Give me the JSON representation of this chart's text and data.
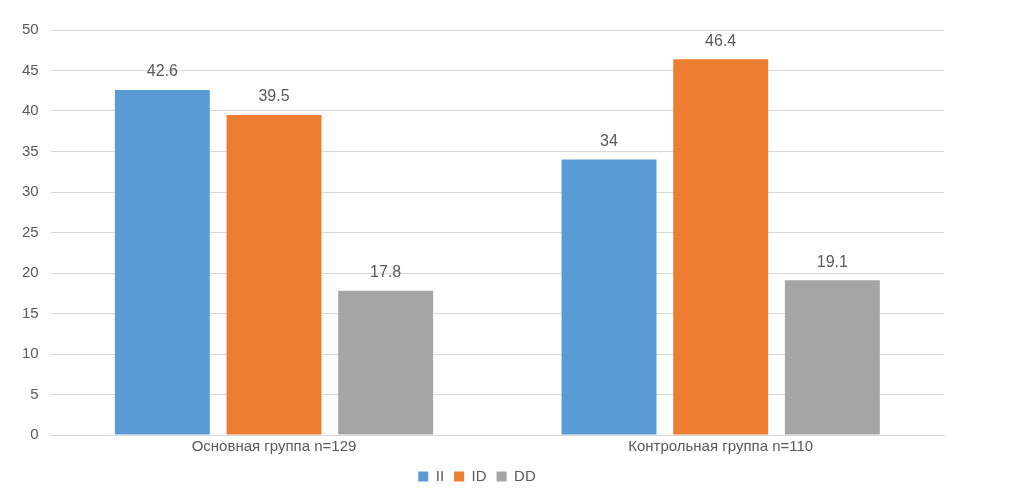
{
  "chart_data": {
    "type": "bar",
    "categories": [
      "Основная группа n=129",
      "Контрольная группа n=110"
    ],
    "series": [
      {
        "name": "II",
        "color": "#5b9bd5",
        "values": [
          42.6,
          34
        ]
      },
      {
        "name": "ID",
        "color": "#ed7d31",
        "values": [
          39.5,
          46.4
        ]
      },
      {
        "name": "DD",
        "color": "#a5a5a5",
        "values": [
          17.8,
          19.1
        ]
      }
    ],
    "ylim": [
      0,
      50
    ],
    "yticks": [
      0,
      5,
      10,
      15,
      20,
      25,
      30,
      35,
      40,
      45,
      50
    ],
    "grid": "y",
    "legend": "bottom",
    "data_labels": true
  }
}
